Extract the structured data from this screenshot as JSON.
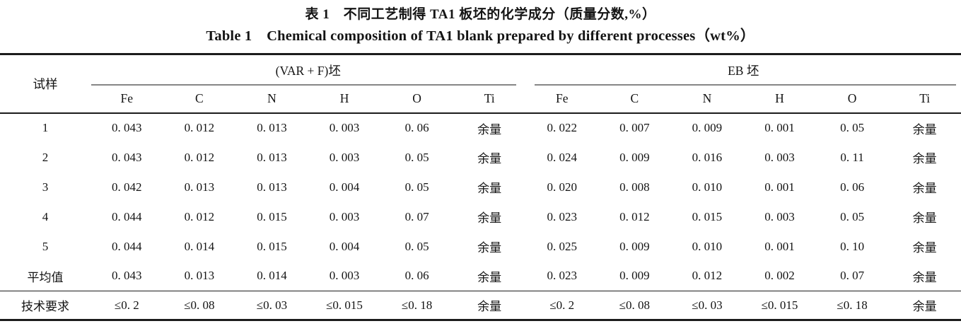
{
  "titles": {
    "zh": "表 1　不同工艺制得 TA1 板坯的化学成分（质量分数,%）",
    "en": "Table 1　Chemical composition of TA1 blank prepared by different processes（wt%）"
  },
  "table": {
    "row_header_label": "试样",
    "groups": [
      {
        "label": "(VAR + F)坯",
        "columns": [
          "Fe",
          "C",
          "N",
          "H",
          "O",
          "Ti"
        ]
      },
      {
        "label": "EB 坯",
        "columns": [
          "Fe",
          "C",
          "N",
          "H",
          "O",
          "Ti"
        ]
      }
    ],
    "rows": [
      {
        "label": "1",
        "cells": [
          "0. 043",
          "0. 012",
          "0. 013",
          "0. 003",
          "0. 06",
          "余量",
          "0. 022",
          "0. 007",
          "0. 009",
          "0. 001",
          "0. 05",
          "余量"
        ]
      },
      {
        "label": "2",
        "cells": [
          "0. 043",
          "0. 012",
          "0. 013",
          "0. 003",
          "0. 05",
          "余量",
          "0. 024",
          "0. 009",
          "0. 016",
          "0. 003",
          "0. 11",
          "余量"
        ]
      },
      {
        "label": "3",
        "cells": [
          "0. 042",
          "0. 013",
          "0. 013",
          "0. 004",
          "0. 05",
          "余量",
          "0. 020",
          "0. 008",
          "0. 010",
          "0. 001",
          "0. 06",
          "余量"
        ]
      },
      {
        "label": "4",
        "cells": [
          "0. 044",
          "0. 012",
          "0. 015",
          "0. 003",
          "0. 07",
          "余量",
          "0. 023",
          "0. 012",
          "0. 015",
          "0. 003",
          "0. 05",
          "余量"
        ]
      },
      {
        "label": "5",
        "cells": [
          "0. 044",
          "0. 014",
          "0. 015",
          "0. 004",
          "0. 05",
          "余量",
          "0. 025",
          "0. 009",
          "0. 010",
          "0. 001",
          "0. 10",
          "余量"
        ]
      },
      {
        "label": "平均值",
        "cells": [
          "0. 043",
          "0. 013",
          "0. 014",
          "0. 003",
          "0. 06",
          "余量",
          "0. 023",
          "0. 009",
          "0. 012",
          "0. 002",
          "0. 07",
          "余量"
        ]
      },
      {
        "label": "技术要求",
        "cells": [
          "≤0. 2",
          "≤0. 08",
          "≤0. 03",
          "≤0. 015",
          "≤0. 18",
          "余量",
          "≤0. 2",
          "≤0. 08",
          "≤0. 03",
          "≤0. 015",
          "≤0. 18",
          "余量"
        ]
      }
    ],
    "colors": {
      "rule_dark": "#1c1c1c",
      "rule_gray": "#868686"
    }
  }
}
